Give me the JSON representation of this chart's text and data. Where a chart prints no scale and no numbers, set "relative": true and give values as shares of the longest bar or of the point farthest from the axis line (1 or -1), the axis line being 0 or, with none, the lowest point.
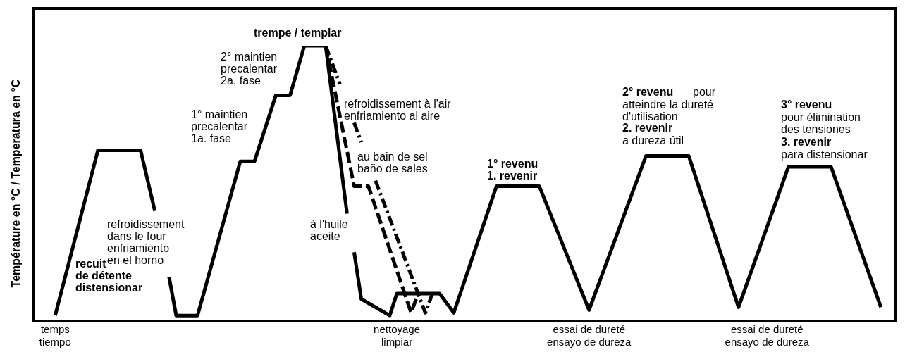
{
  "chart_data": {
    "type": "line",
    "relative": true,
    "ylabel": "Température en °C / Temperatura en °C",
    "categories": [
      null,
      null,
      null,
      "temps\ntiempo",
      null,
      null,
      null,
      null,
      null,
      null,
      null,
      null,
      null,
      null,
      null,
      null,
      null,
      null,
      null,
      null,
      null,
      null,
      null,
      null,
      null,
      null,
      null,
      null,
      null,
      null,
      null,
      null,
      null,
      null,
      null,
      null,
      null,
      null,
      null,
      null,
      null,
      null,
      null,
      null,
      null,
      null,
      null,
      null,
      null,
      null,
      null,
      "nettoyage\nlimpiar",
      null,
      null,
      null,
      null,
      null,
      null,
      null,
      null,
      null,
      null,
      null,
      null,
      null,
      null,
      null,
      null,
      null,
      null,
      null,
      null,
      null,
      null,
      null,
      null,
      null,
      null,
      "essai de dureté\nensayo de dureza",
      null,
      null,
      null,
      null,
      null,
      null,
      null,
      null,
      null,
      null,
      null,
      null,
      null,
      null,
      null,
      null,
      null,
      null,
      null,
      null,
      null,
      null,
      null,
      null,
      "essai de dureté\nensayo de dureza",
      null,
      null,
      null,
      null,
      null,
      null,
      null,
      null,
      null,
      null,
      null,
      null,
      null,
      null,
      null,
      null,
      null,
      null
    ],
    "series": [
      {
        "color": "#000000",
        "line_style": "solid",
        "values": [
          null,
          null,
          null,
          0.02,
          null,
          null,
          null,
          null,
          null,
          0.62,
          null,
          null,
          null,
          null,
          null,
          0.62,
          null,
          0.4,
          null,
          null,
          null,
          null,
          null,
          null,
          null,
          null,
          null,
          null,
          null,
          null,
          null,
          null,
          null,
          null,
          null,
          null,
          null,
          null,
          null,
          null,
          null,
          null,
          null,
          null,
          null,
          null,
          null,
          null,
          null,
          null,
          null,
          null,
          null,
          null,
          null,
          null,
          null,
          null,
          null,
          null,
          null,
          null,
          null,
          null,
          null,
          null,
          null,
          null,
          null,
          null,
          null,
          null,
          null,
          null,
          null,
          null,
          null,
          null,
          null,
          null,
          null,
          null,
          null,
          null,
          null,
          null,
          null,
          null,
          null,
          null,
          null,
          null,
          null,
          null,
          null,
          null,
          null,
          null,
          null,
          null,
          null,
          null,
          null,
          null,
          null,
          null,
          null,
          null,
          null,
          null,
          null,
          null,
          null,
          null,
          null,
          null,
          null,
          null,
          null,
          null,
          null,
          null
        ]
      },
      {
        "color": "#000000",
        "line_style": "solid",
        "values": [
          null,
          null,
          null,
          null,
          null,
          null,
          null,
          null,
          null,
          null,
          null,
          null,
          null,
          null,
          null,
          null,
          null,
          null,
          null,
          0.16,
          0.02,
          null,
          null,
          0.02,
          null,
          null,
          null,
          null,
          null,
          0.58,
          null,
          0.58,
          null,
          null,
          0.82,
          null,
          0.82,
          null,
          1,
          null,
          null,
          1,
          null,
          null,
          0.39,
          null,
          null,
          null,
          null,
          null,
          null,
          null,
          null,
          null,
          null,
          null,
          null,
          null,
          null,
          null,
          null,
          null,
          null,
          null,
          null,
          null,
          null,
          null,
          null,
          null,
          null,
          null,
          null,
          null,
          null,
          null,
          null,
          null,
          null,
          null,
          null,
          null,
          null,
          null,
          null,
          null,
          null,
          null,
          null,
          null,
          null,
          null,
          null,
          null,
          null,
          null,
          null,
          null,
          null,
          null,
          null,
          null,
          null,
          null,
          null,
          null,
          null,
          null,
          null,
          null,
          null,
          null,
          null,
          null,
          null,
          null,
          null,
          null,
          null,
          null,
          null,
          null
        ]
      },
      {
        "color": "#000000",
        "line_style": "solid",
        "values": [
          null,
          null,
          null,
          null,
          null,
          null,
          null,
          null,
          null,
          null,
          null,
          null,
          null,
          null,
          null,
          null,
          null,
          null,
          null,
          null,
          null,
          null,
          null,
          null,
          null,
          null,
          null,
          null,
          null,
          null,
          null,
          null,
          null,
          null,
          null,
          null,
          null,
          null,
          null,
          null,
          null,
          null,
          null,
          null,
          null,
          0.25,
          0.08,
          null,
          null,
          null,
          0.02,
          0.1,
          null,
          null,
          null,
          null,
          null,
          0.1,
          null,
          0.03,
          null,
          null,
          null,
          null,
          null,
          0.49,
          null,
          null,
          null,
          null,
          null,
          0.49,
          null,
          null,
          null,
          null,
          null,
          null,
          0.04,
          null,
          null,
          null,
          null,
          null,
          null,
          null,
          0.6,
          null,
          null,
          null,
          null,
          null,
          0.6,
          null,
          null,
          null,
          null,
          null,
          null,
          0.05,
          null,
          null,
          null,
          null,
          null,
          null,
          0.56,
          null,
          null,
          null,
          null,
          null,
          0.56,
          null,
          null,
          null,
          null,
          null,
          null,
          0.05,
          null,
          null
        ]
      },
      {
        "color": "#000000",
        "line_style": "dashed",
        "values": [
          null,
          null,
          null,
          null,
          null,
          null,
          null,
          null,
          null,
          null,
          null,
          null,
          null,
          null,
          null,
          null,
          null,
          null,
          null,
          null,
          null,
          null,
          null,
          null,
          null,
          null,
          null,
          null,
          null,
          null,
          null,
          null,
          null,
          null,
          null,
          null,
          null,
          null,
          null,
          null,
          null,
          1,
          null,
          null,
          null,
          0.49,
          null,
          0.49,
          null,
          null,
          null,
          null,
          null,
          0.03,
          0.1,
          null,
          null,
          null,
          null,
          null,
          null,
          null,
          null,
          null,
          null,
          null,
          null,
          null,
          null,
          null,
          null,
          null,
          null,
          null,
          null,
          null,
          null,
          null,
          null,
          null,
          null,
          null,
          null,
          null,
          null,
          null,
          null,
          null,
          null,
          null,
          null,
          null,
          null,
          null,
          null,
          null,
          null,
          null,
          null,
          null,
          null,
          null,
          null,
          null,
          null,
          null,
          null,
          null,
          null,
          null,
          null,
          null,
          null,
          null,
          null,
          null,
          null,
          null,
          null,
          null,
          null,
          null
        ]
      },
      {
        "color": "#000000",
        "line_style": "dotted",
        "values": [
          null,
          null,
          null,
          null,
          null,
          null,
          null,
          null,
          null,
          null,
          null,
          null,
          null,
          null,
          null,
          null,
          null,
          null,
          null,
          null,
          null,
          null,
          null,
          null,
          null,
          null,
          null,
          null,
          null,
          null,
          null,
          null,
          null,
          null,
          null,
          null,
          null,
          null,
          null,
          null,
          null,
          1,
          null,
          0.86,
          null,
          null,
          null,
          null,
          null,
          null,
          null,
          null,
          null,
          null,
          null,
          null,
          null,
          null,
          null,
          null,
          null,
          null,
          null,
          null,
          null,
          null,
          null,
          null,
          null,
          null,
          null,
          null,
          null,
          null,
          null,
          null,
          null,
          null,
          null,
          null,
          null,
          null,
          null,
          null,
          null,
          null,
          null,
          null,
          null,
          null,
          null,
          null,
          null,
          null,
          null,
          null,
          null,
          null,
          null,
          null,
          null,
          null,
          null,
          null,
          null,
          null,
          null,
          null,
          null,
          null,
          null,
          null,
          null,
          null,
          null,
          null,
          null,
          null,
          null,
          null,
          null,
          null
        ]
      },
      {
        "color": "#000000",
        "line_style": "dotted",
        "values": [
          null,
          null,
          null,
          null,
          null,
          null,
          null,
          null,
          null,
          null,
          null,
          null,
          null,
          null,
          null,
          null,
          null,
          null,
          null,
          null,
          null,
          null,
          null,
          null,
          null,
          null,
          null,
          null,
          null,
          null,
          null,
          null,
          null,
          null,
          null,
          null,
          null,
          null,
          null,
          null,
          null,
          null,
          null,
          null,
          null,
          0.72,
          0.65,
          null,
          null,
          null,
          null,
          null,
          null,
          null,
          null,
          null,
          null,
          null,
          null,
          null,
          null,
          null,
          null,
          null,
          null,
          null,
          null,
          null,
          null,
          null,
          null,
          null,
          null,
          null,
          null,
          null,
          null,
          null,
          null,
          null,
          null,
          null,
          null,
          null,
          null,
          null,
          null,
          null,
          null,
          null,
          null,
          null,
          null,
          null,
          null,
          null,
          null,
          null,
          null,
          null,
          null,
          null,
          null,
          null,
          null,
          null,
          null,
          null,
          null,
          null,
          null,
          null,
          null,
          null,
          null,
          null,
          null,
          null,
          null,
          null,
          null,
          null
        ]
      },
      {
        "color": "#000000",
        "line_style": "dotted",
        "values": [
          null,
          null,
          null,
          null,
          null,
          null,
          null,
          null,
          null,
          null,
          null,
          null,
          null,
          null,
          null,
          null,
          null,
          null,
          null,
          null,
          null,
          null,
          null,
          null,
          null,
          null,
          null,
          null,
          null,
          null,
          null,
          null,
          null,
          null,
          null,
          null,
          null,
          null,
          null,
          null,
          null,
          null,
          null,
          null,
          null,
          null,
          null,
          null,
          0.51,
          null,
          null,
          null,
          null,
          null,
          null,
          0.03,
          0.1,
          null,
          null,
          null,
          null,
          null,
          null,
          null,
          null,
          null,
          null,
          null,
          null,
          null,
          null,
          null,
          null,
          null,
          null,
          null,
          null,
          null,
          null,
          null,
          null,
          null,
          null,
          null,
          null,
          null,
          null,
          null,
          null,
          null,
          null,
          null,
          null,
          null,
          null,
          null,
          null,
          null,
          null,
          null,
          null,
          null,
          null,
          null,
          null,
          null,
          null,
          null,
          null,
          null,
          null,
          null,
          null,
          null,
          null,
          null,
          null,
          null,
          null,
          null,
          null,
          null
        ]
      }
    ],
    "marker": "none",
    "grid": false,
    "legend": false,
    "annotations": [
      "recuit\nde détente\ndistensionar",
      "refroidissement\ndans le four\nenfriamiento\nen el horno",
      "1° maintien\nprecalentar\n1a. fase",
      "2° maintien\nprecalentar\n2a. fase",
      "trempe / templar",
      "refroidissement à l'air\nenfriamiento al aire",
      "au bain de sel\nbaño de sales",
      "à l'huile\naceite",
      "1° revenu\n1. revenir",
      "2° revenu",
      "pour",
      "atteindre la dureté\nd'utilisation",
      "2. revenir",
      "a dureza útil",
      "3° revenu",
      "pour élimination\ndes tensiones",
      "3. revenir",
      "para distensionar"
    ]
  }
}
